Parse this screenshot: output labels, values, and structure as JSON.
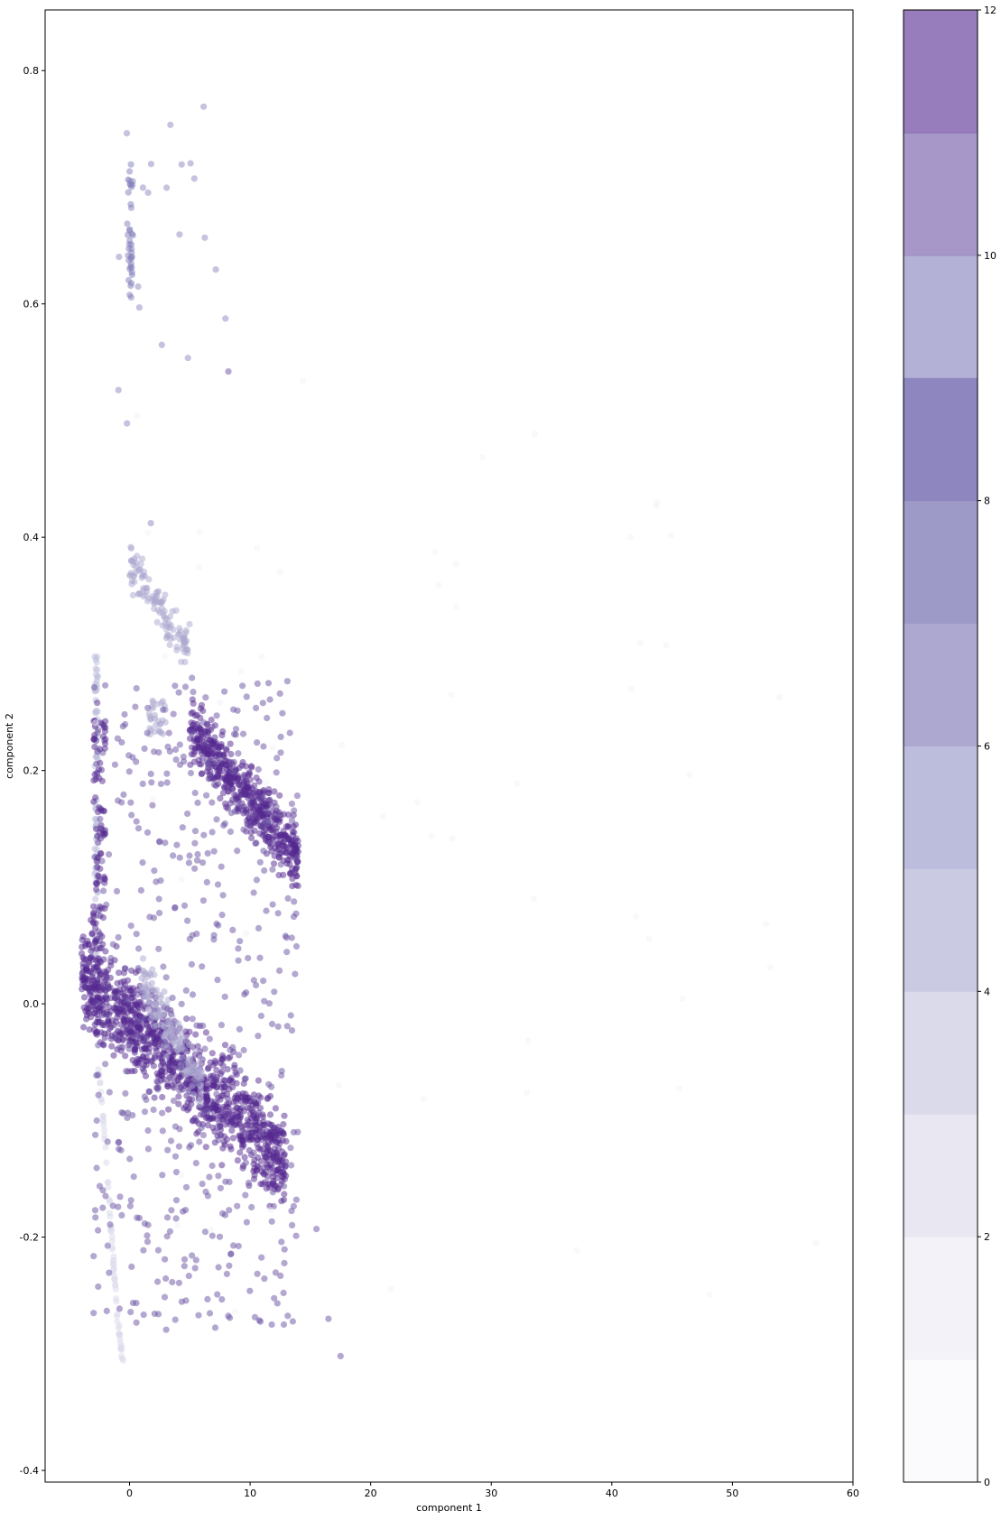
{
  "chart_data": {
    "type": "scatter",
    "title": "",
    "xlabel": "component 1",
    "ylabel": "component 2",
    "xlim": [
      -7,
      60
    ],
    "ylim": [
      -0.41,
      0.852
    ],
    "xticks": [
      0,
      10,
      20,
      30,
      40,
      50,
      60
    ],
    "yticks": [
      -0.4,
      -0.2,
      0.0,
      0.2,
      0.4,
      0.6,
      0.8
    ],
    "grid": false,
    "colormap": "Purples",
    "marker_alpha": 0.5,
    "colorbar": {
      "range": [
        0,
        12
      ],
      "levels": 11,
      "ticks": [
        0,
        2,
        4,
        6,
        8,
        10,
        12
      ],
      "colors": [
        "#fbfbfd",
        "#f3f2f8",
        "#e8e7f2",
        "#dadaeb",
        "#cbcae3",
        "#bcbddc",
        "#aca8d0",
        "#9e9ac8",
        "#8d86bf",
        "#807dba",
        "#6a51a3",
        "#54278f"
      ]
    },
    "clusters": [
      {
        "description": "vertical upper streak",
        "color_value": 10,
        "x_range": [
          -0.2,
          0.3
        ],
        "y_range": [
          0.605,
          0.72
        ],
        "n": 40,
        "shape": "vline"
      },
      {
        "description": "sparse upper scatter",
        "color_value": 9,
        "x_range": [
          -1,
          8
        ],
        "y_range": [
          0.41,
          0.77
        ],
        "n": 22,
        "shape": "box"
      },
      {
        "description": "left vertical light line",
        "color_value": 5,
        "x_range": [
          -2.9,
          -2.6
        ],
        "y_range": [
          0.02,
          0.3
        ],
        "n": 90,
        "shape": "vline"
      },
      {
        "description": "lower curved light tail",
        "color_value": 3,
        "x": [
          -2.6,
          -2,
          -1.5,
          -1,
          -0.5
        ],
        "y": [
          -0.05,
          -0.12,
          -0.2,
          -0.27,
          -0.31
        ],
        "n": 70,
        "shape": "curve"
      },
      {
        "description": "upper light cluster",
        "color_value": 6,
        "x_range": [
          0,
          5
        ],
        "y_range": [
          0.3,
          0.38
        ],
        "n": 120,
        "shape": "diag",
        "slope": -0.015
      },
      {
        "description": "mid light cluster",
        "color_value": 7,
        "x_range": [
          1.5,
          3
        ],
        "y_range": [
          0.23,
          0.26
        ],
        "n": 30,
        "shape": "box"
      },
      {
        "description": "dense dark upper band",
        "color_value": 12,
        "x_range": [
          5,
          14
        ],
        "y_range": [
          0.12,
          0.24
        ],
        "n": 520,
        "shape": "diag",
        "slope": -0.012
      },
      {
        "description": "dense dark lower band",
        "color_value": 12,
        "x_range": [
          -4,
          13
        ],
        "y_range": [
          -0.14,
          0.03
        ],
        "n": 1100,
        "shape": "diag",
        "slope": -0.0095
      },
      {
        "description": "light overlay lower band",
        "color_value": 6,
        "x_range": [
          1,
          6
        ],
        "y_range": [
          -0.07,
          0.02
        ],
        "n": 160,
        "shape": "diag",
        "slope": -0.018
      },
      {
        "description": "mid scatter dark",
        "color_value": 11,
        "x_range": [
          -3,
          14
        ],
        "y_range": [
          -0.28,
          0.28
        ],
        "n": 480,
        "shape": "box"
      },
      {
        "description": "left dark streak",
        "color_value": 12,
        "x_range": [
          -3,
          -2
        ],
        "y_range": [
          -0.03,
          0.27
        ],
        "n": 110,
        "shape": "vline"
      },
      {
        "description": "outlier points",
        "color_value": 11,
        "x": [
          11.8,
          12.8,
          16.5,
          17.5,
          15.5,
          8.2
        ],
        "y": [
          -0.275,
          -0.275,
          -0.27,
          -0.302,
          -0.193,
          0.542
        ],
        "shape": "points"
      },
      {
        "description": "faint wide spread",
        "color_value": 1,
        "x_range": [
          -3,
          57
        ],
        "y_range": [
          -0.35,
          0.55
        ],
        "n": 60,
        "shape": "box"
      }
    ]
  }
}
